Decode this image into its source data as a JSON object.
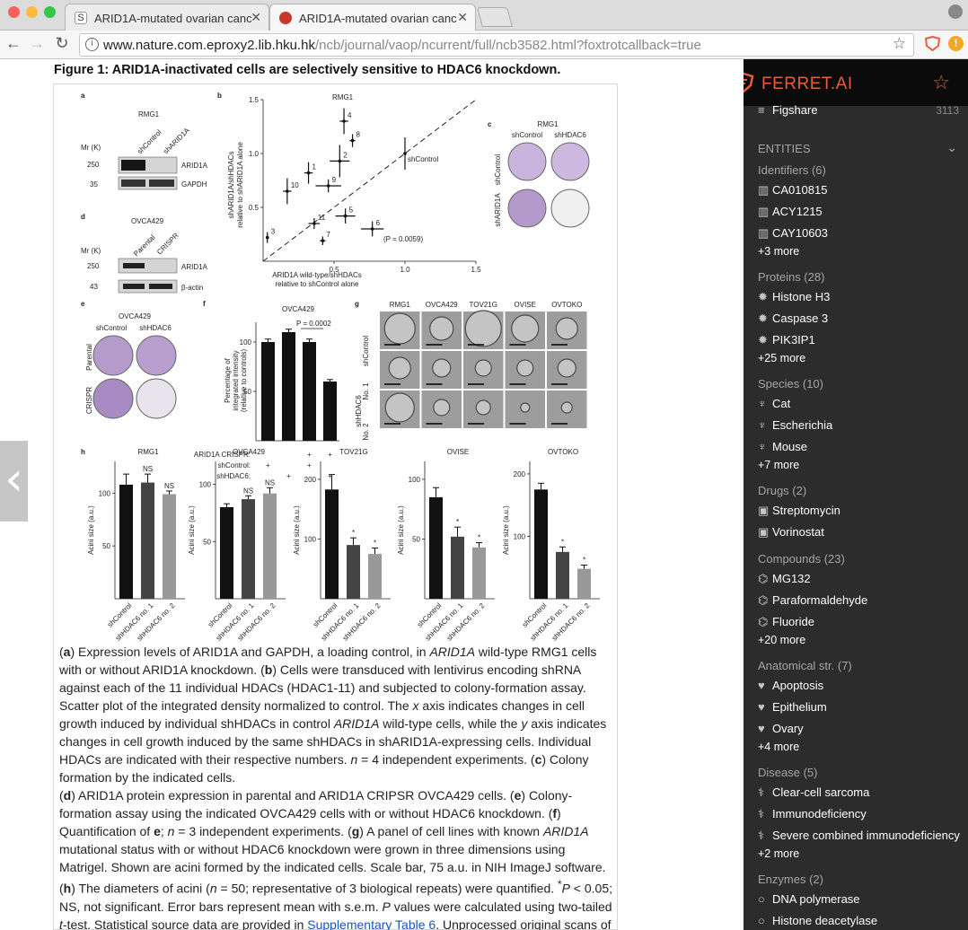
{
  "browser": {
    "tabs": [
      {
        "title": "ARID1A-mutated ovarian canc"
      },
      {
        "title": "ARID1A-mutated ovarian canc"
      }
    ],
    "url_main": "www.nature.com.eproxy2.lib.hku.hk",
    "url_path": "/ncb/journal/vaop/ncurrent/full/ncb3582.html?foxtrotcallback=true"
  },
  "figure": {
    "title": "Figure 1: ARID1A-inactivated cells are selectively sensitive to HDAC6 knockdown.",
    "panel_a": {
      "letter": "a",
      "cell_line": "RMG1",
      "lanes": [
        "shControl",
        "shARID1A"
      ],
      "mr_label": "Mr (K)",
      "markers": [
        "250",
        "35"
      ],
      "bands": [
        "ARID1A",
        "GAPDH"
      ]
    },
    "panel_d": {
      "letter": "d",
      "cell_line": "OVCA429",
      "lanes": [
        "Parental",
        "CRISPR"
      ],
      "mr_label": "Mr (K)",
      "markers": [
        "250",
        "43"
      ],
      "bands": [
        "ARID1A",
        "β-actin"
      ]
    },
    "panel_b": {
      "letter": "b",
      "title": "RMG1",
      "xlabel_1": "ARID1A wild-type/shHDACs",
      "xlabel_2": "relative to shControl alone",
      "ylabel_1": "shARID1A/shHDACs",
      "ylabel_2": "relative to shARID1A alone",
      "shcontrol_label": "shControl",
      "pvalue_label": "(P = 0.0059)"
    },
    "panel_c": {
      "letter": "c",
      "title": "RMG1",
      "cols": [
        "shControl",
        "shHDAC6"
      ],
      "rows": [
        "shControl",
        "shARID1A"
      ]
    },
    "panel_e": {
      "letter": "e",
      "title": "OVCA429",
      "cols": [
        "shControl",
        "shHDAC6"
      ],
      "rows": [
        "Parental",
        "CRISPR"
      ]
    },
    "panel_f": {
      "letter": "f",
      "title": "OVCA429",
      "pvalue": "P = 0.0002",
      "ylabel_1": "Percentage of",
      "ylabel_2": "integrated intensity",
      "ylabel_3": "(relative to controls)",
      "rowlabels": [
        "ARID1A CRISPR:",
        "shControl:",
        "shHDAC6:"
      ],
      "rowsigns": [
        [
          "",
          "",
          "+",
          "+"
        ],
        [
          "+",
          "",
          "+",
          ""
        ],
        [
          "",
          "+",
          "",
          "+"
        ]
      ]
    },
    "panel_g": {
      "letter": "g",
      "cols": [
        "RMG1",
        "OVCA429",
        "TOV21G",
        "OVISE",
        "OVTOKO"
      ],
      "rows": [
        "shControl",
        "No. 1",
        "No. 2"
      ],
      "group": "shHDAC6"
    },
    "panel_h": {
      "letter": "h",
      "ylabel": "Acini size (a.u.)",
      "xcats": [
        "shControl",
        "shHDAC6 no. 1",
        "shHDAC6 no. 2"
      ]
    }
  },
  "chart_data": [
    {
      "type": "scatter",
      "panel": "b",
      "title": "RMG1",
      "xlabel": "ARID1A wild-type/shHDACs relative to shControl alone",
      "ylabel": "shARID1A/shHDACs relative to shARID1A alone",
      "xlim": [
        0,
        1.5
      ],
      "ylim": [
        0,
        1.5
      ],
      "xticks": [
        "0.5",
        "1.0",
        "1.5"
      ],
      "yticks": [
        "0.5",
        "1.0",
        "1.5"
      ],
      "points": [
        {
          "label": "1",
          "x": 0.32,
          "y": 0.82,
          "xerr": 0.03,
          "yerr": 0.1
        },
        {
          "label": "2",
          "x": 0.54,
          "y": 0.93,
          "xerr": 0.07,
          "yerr": 0.15
        },
        {
          "label": "3",
          "x": 0.03,
          "y": 0.22,
          "xerr": 0.01,
          "yerr": 0.05
        },
        {
          "label": "4",
          "x": 0.57,
          "y": 1.3,
          "xerr": 0.03,
          "yerr": 0.12
        },
        {
          "label": "5",
          "x": 0.58,
          "y": 0.42,
          "xerr": 0.07,
          "yerr": 0.07
        },
        {
          "label": "6",
          "x": 0.77,
          "y": 0.3,
          "xerr": 0.08,
          "yerr": 0.07
        },
        {
          "label": "7",
          "x": 0.42,
          "y": 0.19,
          "xerr": 0.02,
          "yerr": 0.04
        },
        {
          "label": "8",
          "x": 0.63,
          "y": 1.12,
          "xerr": 0.02,
          "yerr": 0.06
        },
        {
          "label": "9",
          "x": 0.46,
          "y": 0.7,
          "xerr": 0.09,
          "yerr": 0.06
        },
        {
          "label": "10",
          "x": 0.17,
          "y": 0.65,
          "xerr": 0.03,
          "yerr": 0.12
        },
        {
          "label": "11",
          "x": 0.36,
          "y": 0.35,
          "xerr": 0.04,
          "yerr": 0.05
        },
        {
          "label": "shControl",
          "x": 1.0,
          "y": 1.0,
          "xerr": 0,
          "yerr": 0.15
        }
      ]
    },
    {
      "type": "bar",
      "panel": "f",
      "title": "OVCA429",
      "ylim": [
        0,
        120
      ],
      "yticks": [
        "50",
        "100"
      ],
      "values": [
        100,
        110,
        100,
        60
      ],
      "errors": [
        3,
        3,
        3,
        2
      ]
    },
    {
      "type": "bar",
      "panel": "h",
      "series": [
        {
          "name": "RMG1",
          "ylim": [
            0,
            130
          ],
          "yticks": [
            "50",
            "100"
          ],
          "values": [
            108,
            110,
            99
          ],
          "errors": [
            10,
            8,
            3
          ],
          "annotations": [
            "",
            "NS",
            "NS"
          ]
        },
        {
          "name": "OVCA429",
          "ylim": [
            0,
            120
          ],
          "yticks": [
            "50",
            "100"
          ],
          "values": [
            80,
            87,
            92
          ],
          "errors": [
            3,
            3,
            5
          ],
          "annotations": [
            "",
            "NS",
            "NS"
          ]
        },
        {
          "name": "TOV21G",
          "ylim": [
            0,
            230
          ],
          "yticks": [
            "100",
            "200"
          ],
          "values": [
            183,
            90,
            75
          ],
          "errors": [
            25,
            12,
            10
          ],
          "annotations": [
            "",
            "*",
            "*"
          ]
        },
        {
          "name": "OVISE",
          "ylim": [
            0,
            115
          ],
          "yticks": [
            "50",
            "100"
          ],
          "values": [
            85,
            52,
            43
          ],
          "errors": [
            8,
            8,
            4
          ],
          "annotations": [
            "",
            "*",
            "*"
          ]
        },
        {
          "name": "OVTOKO",
          "ylim": [
            0,
            220
          ],
          "yticks": [
            "100",
            "200"
          ],
          "values": [
            175,
            75,
            48
          ],
          "errors": [
            10,
            8,
            6
          ],
          "annotations": [
            "",
            "*",
            "*"
          ]
        }
      ]
    }
  ],
  "caption": {
    "parts": [
      {
        "t": "(",
        "s": "n"
      },
      {
        "t": "a",
        "s": "b"
      },
      {
        "t": ") Expression levels of ARID1A and GAPDH, a loading control, in ",
        "s": "n"
      },
      {
        "t": "ARID1A",
        "s": "i"
      },
      {
        "t": " wild-type RMG1 cells with or without ARID1A knockdown. (",
        "s": "n"
      },
      {
        "t": "b",
        "s": "b"
      },
      {
        "t": ") Cells were transduced with lentivirus encoding shRNA against each of the 11 individual HDACs (HDAC1-11) and subjected to colony-formation assay. Scatter plot of the integrated density normalized to control. The ",
        "s": "n"
      },
      {
        "t": "x",
        "s": "i"
      },
      {
        "t": " axis indicates changes in cell growth induced by individual shHDACs in control ",
        "s": "n"
      },
      {
        "t": "ARID1A",
        "s": "i"
      },
      {
        "t": " wild-type cells, while the ",
        "s": "n"
      },
      {
        "t": "y",
        "s": "i"
      },
      {
        "t": " axis indicates changes in cell growth induced by the same shHDACs in shARID1A-expressing cells. Individual HDACs are indicated with their respective numbers. ",
        "s": "n"
      },
      {
        "t": "n",
        "s": "i"
      },
      {
        "t": " = 4 independent experiments. (",
        "s": "n"
      },
      {
        "t": "c",
        "s": "b"
      },
      {
        "t": ") Colony formation by the indicated cells.",
        "s": "n"
      },
      {
        "t": "",
        "s": "br"
      },
      {
        "t": "(",
        "s": "n"
      },
      {
        "t": "d",
        "s": "b"
      },
      {
        "t": ") ARID1A protein expression in parental and ARID1A CRIPSR OVCA429 cells. (",
        "s": "n"
      },
      {
        "t": "e",
        "s": "b"
      },
      {
        "t": ") Colony-formation assay using the indicated OVCA429 cells with or without HDAC6 knockdown. (",
        "s": "n"
      },
      {
        "t": "f",
        "s": "b"
      },
      {
        "t": ") Quantification of ",
        "s": "n"
      },
      {
        "t": "e",
        "s": "b"
      },
      {
        "t": "; ",
        "s": "n"
      },
      {
        "t": "n",
        "s": "i"
      },
      {
        "t": " = 3 independent experiments. (",
        "s": "n"
      },
      {
        "t": "g",
        "s": "b"
      },
      {
        "t": ") A panel of cell lines with known ",
        "s": "n"
      },
      {
        "t": "ARID1A",
        "s": "i"
      },
      {
        "t": " mutational status with or without HDAC6 knockdown were grown in three dimensions using Matrigel. Shown are acini formed by the indicated cells. Scale bar, 75 a.u. in NIH ImageJ software. (",
        "s": "n"
      },
      {
        "t": "h",
        "s": "b"
      },
      {
        "t": ") The diameters of acini (",
        "s": "n"
      },
      {
        "t": "n",
        "s": "i"
      },
      {
        "t": " = 50; representative of 3 biological repeats) were quantified. ",
        "s": "n"
      },
      {
        "t": "*",
        "s": "sup"
      },
      {
        "t": "P",
        "s": "i"
      },
      {
        "t": " < 0.05; NS, not significant. Error bars represent mean with s.e.m. ",
        "s": "n"
      },
      {
        "t": "P",
        "s": "i"
      },
      {
        "t": " values were calculated using two-tailed ",
        "s": "n"
      },
      {
        "t": "t",
        "s": "i"
      },
      {
        "t": "-test. Statistical source data are provided in ",
        "s": "n"
      },
      {
        "t": "Supplementary Table 6",
        "s": "a"
      },
      {
        "t": ". Unprocessed original scans of all blots with size markers are shown in ",
        "s": "n"
      },
      {
        "t": "Supplementary Fig. 9",
        "s": "a"
      },
      {
        "t": ".",
        "s": "n"
      }
    ]
  },
  "sidebar": {
    "logo": "FERRET.AI",
    "top_item": {
      "label": "Figshare",
      "count": "3113"
    },
    "entities_label": "ENTITIES",
    "sections": [
      {
        "title": "Identifiers (6)",
        "icon": "barcode-icon",
        "items": [
          "CA010815",
          "ACY1215",
          "CAY10603"
        ],
        "more": "+3 more"
      },
      {
        "title": "Proteins (28)",
        "icon": "protein-icon",
        "items": [
          "Histone H3",
          "Caspase 3",
          "PIK3IP1"
        ],
        "more": "+25 more"
      },
      {
        "title": "Species (10)",
        "icon": "species-icon",
        "items": [
          "Cat",
          "Escherichia",
          "Mouse"
        ],
        "more": "+7 more"
      },
      {
        "title": "Drugs (2)",
        "icon": "drug-icon",
        "items": [
          "Streptomycin",
          "Vorinostat"
        ],
        "more": ""
      },
      {
        "title": "Compounds (23)",
        "icon": "compound-icon",
        "items": [
          "MG132",
          "Paraformaldehyde",
          "Fluoride"
        ],
        "more": "+20 more"
      },
      {
        "title": "Anatomical str. (7)",
        "icon": "heart-icon",
        "items": [
          "Apoptosis",
          "Epithelium",
          "Ovary"
        ],
        "more": "+4 more"
      },
      {
        "title": "Disease (5)",
        "icon": "disease-icon",
        "items": [
          "Clear-cell sarcoma",
          "Immunodeficiency",
          "Severe combined immunodeficiency"
        ],
        "more": "+2 more"
      },
      {
        "title": "Enzymes (2)",
        "icon": "enzyme-icon",
        "items": [
          "DNA polymerase",
          "Histone deacetylase"
        ],
        "more": ""
      }
    ]
  },
  "colors": {
    "accent": "#e65d3b",
    "sidebar_bg": "#2c2c2c",
    "link": "#1a56b4"
  }
}
